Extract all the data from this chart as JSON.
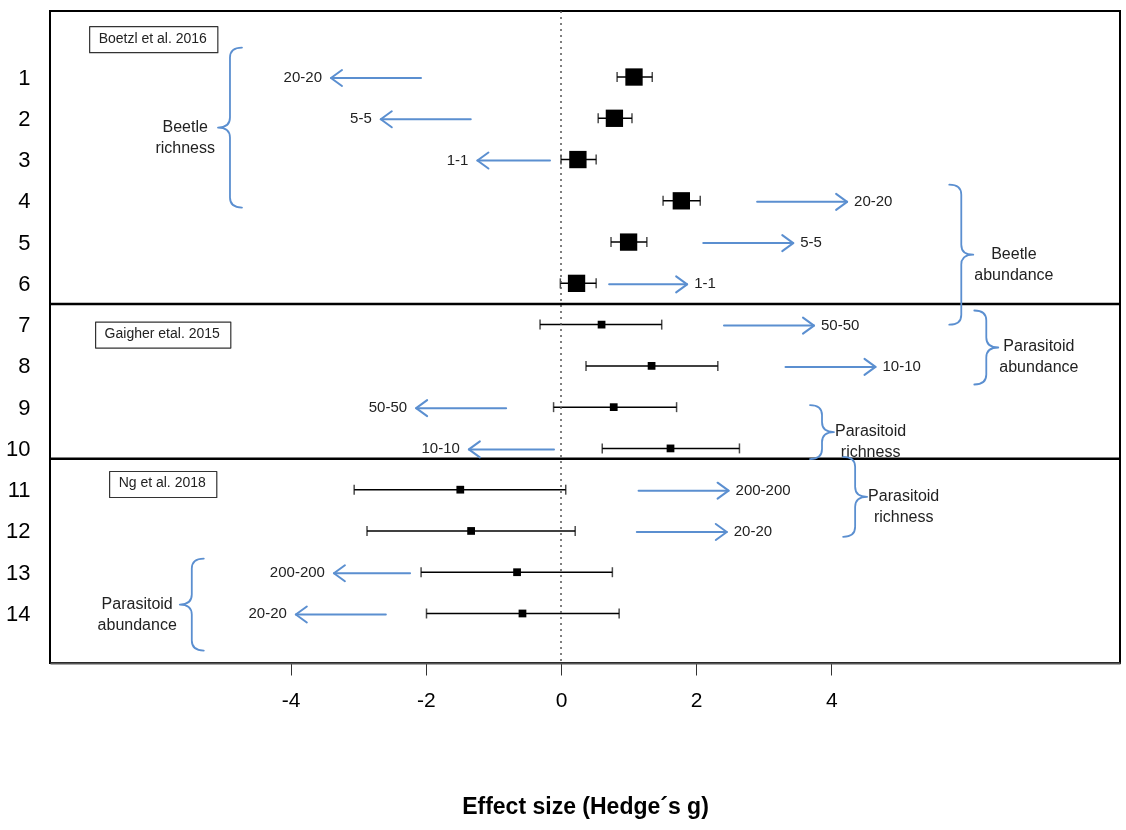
{
  "chart_data": {
    "type": "scatter",
    "xlabel": "Effect size (Hedge´s g)",
    "xlim": [
      -7.56,
      8.27
    ],
    "xticks": [
      -4,
      -2,
      0,
      2,
      4
    ],
    "ylim": [
      15.2,
      -0.6
    ],
    "yticks": [
      1,
      2,
      3,
      4,
      5,
      6,
      7,
      8,
      9,
      10,
      11,
      12,
      13,
      14
    ],
    "grid": false,
    "marker": "square",
    "series": [
      {
        "color": "#000000",
        "x": [
          1.08,
          0.79,
          0.25,
          1.78,
          1.0,
          0.23
        ],
        "values": [
          1,
          2,
          3,
          4,
          5,
          6
        ],
        "xerrors": [
          [
            0.83,
            1.35
          ],
          [
            0.55,
            1.05
          ],
          [
            0.0,
            0.52
          ],
          [
            1.51,
            2.06
          ],
          [
            0.74,
            1.27
          ],
          [
            -0.01,
            0.52
          ]
        ]
      },
      {
        "color": "#000000",
        "x": [
          0.6,
          1.34,
          0.78,
          1.62,
          -1.49,
          -1.33,
          -0.65,
          -0.57
        ],
        "values": [
          7,
          8,
          9,
          10,
          11,
          12,
          13,
          14
        ],
        "xerrors": [
          [
            -0.31,
            1.49
          ],
          [
            0.37,
            2.32
          ],
          [
            -0.11,
            1.71
          ],
          [
            0.61,
            2.64
          ],
          [
            -3.06,
            0.07
          ],
          [
            -2.87,
            0.21
          ],
          [
            -2.07,
            0.76
          ],
          [
            -1.99,
            0.86
          ]
        ]
      }
    ],
    "ref_lines": [
      {
        "axis": "x",
        "value": 0,
        "color": "#555555",
        "line_style": "dotted"
      },
      {
        "axis": "y",
        "value": 6.5,
        "color": "#000000",
        "line_style": "solid"
      },
      {
        "axis": "y",
        "value": 10.25,
        "color": "#000000",
        "line_style": "solid"
      }
    ],
    "annotations": [
      "Boetzl et al. 2016",
      "Gaigher etal. 2015",
      "Ng et al. 2018",
      "20-20",
      "5-5",
      "1-1",
      "20-20",
      "5-5",
      "1-1",
      "50-50",
      "10-10",
      "50-50",
      "10-10",
      "200-200",
      "20-20",
      "200-200",
      "20-20",
      "Beetle richness",
      "Beetle abundance",
      "Parasitoid abundance",
      "Parasitoid richness",
      "Parasitoid richness",
      "Parasitoid abundance"
    ]
  }
}
